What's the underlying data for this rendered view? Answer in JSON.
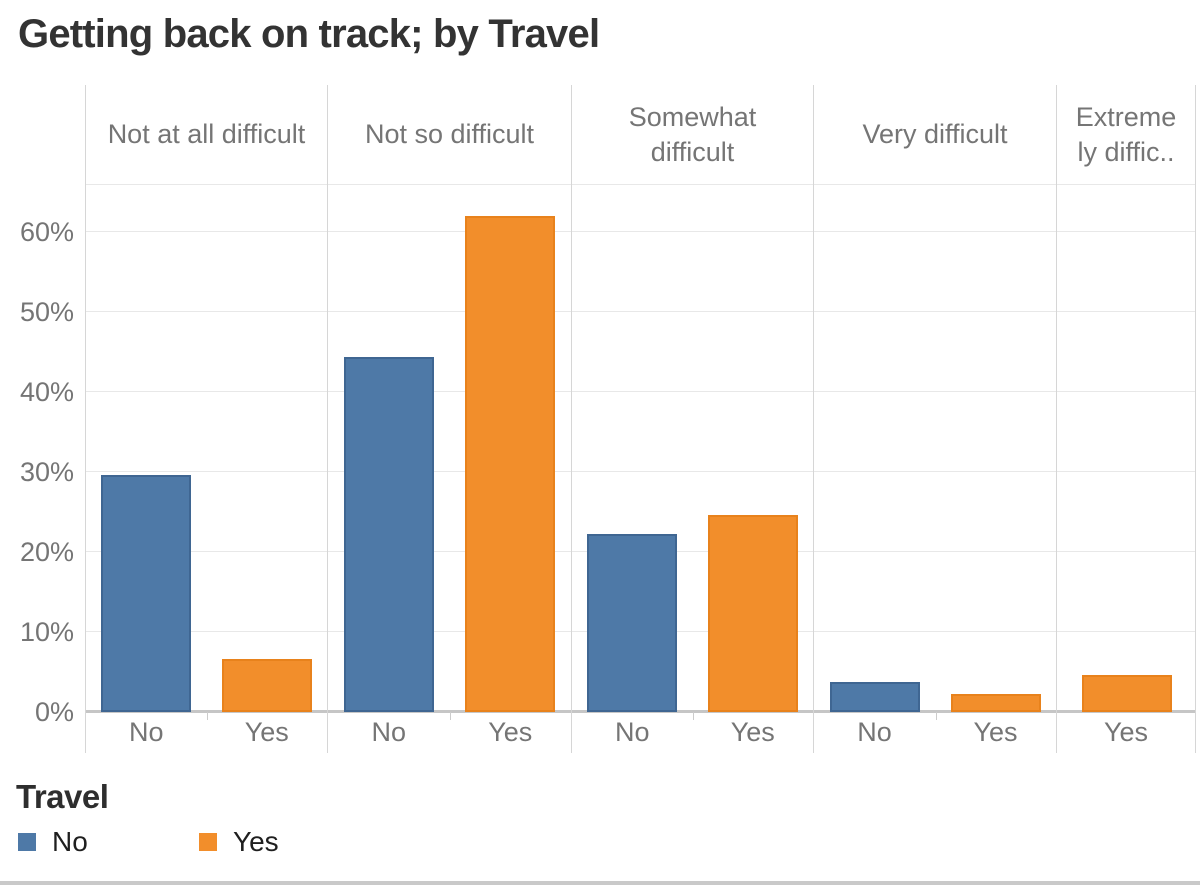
{
  "chart_data": {
    "type": "bar",
    "title": "Getting back on track; by Travel",
    "unit": "%",
    "y_ticks": [
      "0%",
      "10%",
      "20%",
      "30%",
      "40%",
      "50%",
      "60%"
    ],
    "y_tick_values": [
      0,
      10,
      20,
      30,
      40,
      50,
      60
    ],
    "ylim": [
      0,
      66
    ],
    "grid": "horizontal",
    "series_colors": {
      "No": "#4e79a7",
      "Yes": "#f28e2b"
    },
    "panels": [
      {
        "header_lines": [
          "Not at all difficult"
        ],
        "categories": [
          "No",
          "Yes"
        ],
        "values": [
          29.6,
          6.6
        ]
      },
      {
        "header_lines": [
          "Not so difficult"
        ],
        "categories": [
          "No",
          "Yes"
        ],
        "values": [
          44.4,
          62.0
        ]
      },
      {
        "header_lines": [
          "Somewhat",
          "difficult"
        ],
        "categories": [
          "No",
          "Yes"
        ],
        "values": [
          22.3,
          24.6
        ]
      },
      {
        "header_lines": [
          "Very difficult"
        ],
        "categories": [
          "No",
          "Yes"
        ],
        "values": [
          3.7,
          2.2
        ]
      },
      {
        "header_lines": [
          "Extreme",
          "ly diffic.."
        ],
        "categories": [
          "Yes"
        ],
        "values": [
          4.6
        ]
      }
    ],
    "legend": {
      "title": "Travel",
      "position": "bottom-left",
      "items": [
        {
          "label": "No",
          "color": "#4e79a7"
        },
        {
          "label": "Yes",
          "color": "#f28e2b"
        }
      ]
    }
  }
}
